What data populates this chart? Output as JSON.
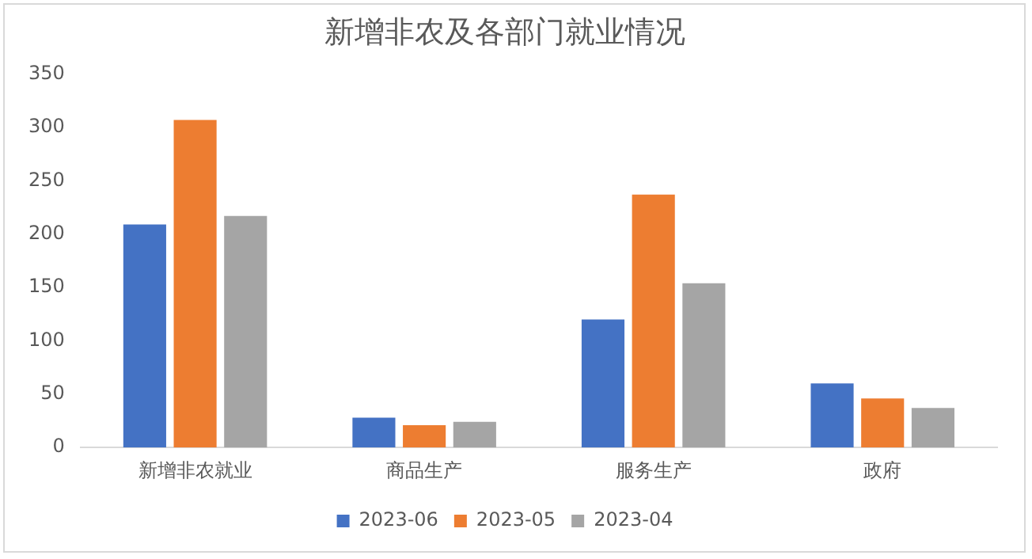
{
  "chart_data": {
    "type": "bar",
    "title": "新增非农及各部门就业情况",
    "categories": [
      "新增非农就业",
      "商品生产",
      "服务生产",
      "政府"
    ],
    "series": [
      {
        "name": "2023-06",
        "color": "#4472c4",
        "values": [
          209,
          28,
          120,
          60
        ]
      },
      {
        "name": "2023-05",
        "color": "#ed7d31",
        "values": [
          307,
          21,
          237,
          46
        ]
      },
      {
        "name": "2023-04",
        "color": "#a5a5a5",
        "values": [
          217,
          24,
          154,
          37
        ]
      }
    ],
    "ylim": [
      0,
      350
    ],
    "yticks": [
      0,
      50,
      100,
      150,
      200,
      250,
      300,
      350
    ],
    "grid": false,
    "legend": "bottom"
  }
}
